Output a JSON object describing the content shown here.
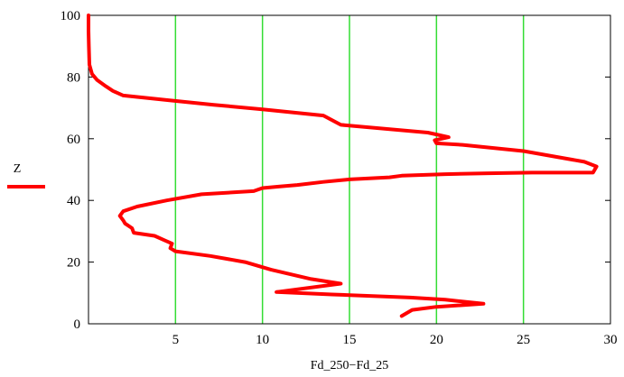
{
  "chart_data": {
    "type": "line",
    "title": "",
    "xlabel": "Fd_250−Fd_25",
    "ylabel": "",
    "xlim": [
      0,
      30
    ],
    "ylim": [
      0,
      100
    ],
    "x_ticks": [
      5,
      10,
      15,
      20,
      25,
      30
    ],
    "y_ticks": [
      0,
      20,
      40,
      60,
      80,
      100
    ],
    "grid": {
      "x": true,
      "y": false,
      "color": "#33dd33"
    },
    "legend": {
      "position": "left",
      "entries": [
        "Z"
      ]
    },
    "series": [
      {
        "name": "Z",
        "color": "#ff0000",
        "points": [
          [
            18.0,
            2.5
          ],
          [
            18.6,
            4.5
          ],
          [
            20.0,
            5.5
          ],
          [
            22.7,
            6.5
          ],
          [
            20.5,
            7.8
          ],
          [
            18.5,
            8.5
          ],
          [
            14.0,
            9.5
          ],
          [
            10.8,
            10.3
          ],
          [
            14.5,
            13.0
          ],
          [
            12.8,
            14.5
          ],
          [
            10.5,
            17.5
          ],
          [
            9.0,
            20.0
          ],
          [
            7.0,
            22.0
          ],
          [
            5.0,
            23.5
          ],
          [
            4.7,
            24.5
          ],
          [
            4.8,
            26.0
          ],
          [
            4.4,
            27.0
          ],
          [
            3.8,
            28.5
          ],
          [
            2.6,
            29.5
          ],
          [
            2.5,
            31.0
          ],
          [
            2.1,
            32.5
          ],
          [
            2.0,
            33.5
          ],
          [
            1.8,
            35.0
          ],
          [
            2.0,
            36.5
          ],
          [
            2.8,
            38.0
          ],
          [
            4.5,
            40.0
          ],
          [
            6.5,
            42.0
          ],
          [
            9.5,
            43.0
          ],
          [
            10.0,
            44.0
          ],
          [
            11.0,
            44.5
          ],
          [
            12.0,
            45.0
          ],
          [
            13.5,
            46.0
          ],
          [
            15.0,
            46.8
          ],
          [
            17.3,
            47.5
          ],
          [
            18.0,
            48.0
          ],
          [
            20.5,
            48.5
          ],
          [
            23.0,
            48.8
          ],
          [
            25.5,
            49.0
          ],
          [
            29.0,
            49.0
          ],
          [
            29.2,
            51.0
          ],
          [
            28.5,
            52.5
          ],
          [
            25.0,
            56.0
          ],
          [
            21.5,
            58.0
          ],
          [
            20.0,
            58.5
          ],
          [
            19.9,
            59.5
          ],
          [
            20.7,
            60.5
          ],
          [
            19.5,
            62.0
          ],
          [
            14.5,
            64.5
          ],
          [
            13.5,
            67.5
          ],
          [
            10.0,
            69.5
          ],
          [
            7.2,
            71.0
          ],
          [
            4.6,
            72.5
          ],
          [
            2.0,
            74.0
          ],
          [
            1.4,
            75.5
          ],
          [
            1.0,
            77.0
          ],
          [
            0.5,
            79.0
          ],
          [
            0.2,
            81.0
          ],
          [
            0.05,
            84.0
          ],
          [
            0.02,
            90.0
          ],
          [
            0.0,
            95.0
          ],
          [
            0.0,
            100.0
          ]
        ]
      }
    ]
  }
}
